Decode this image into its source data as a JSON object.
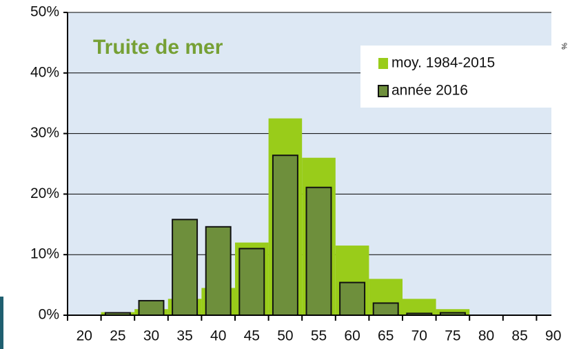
{
  "chart_data": {
    "type": "bar",
    "title": "Truite de mer",
    "side_label": "%",
    "categories": [
      "20",
      "25",
      "30",
      "35",
      "40",
      "45",
      "50",
      "55",
      "60",
      "65",
      "70",
      "75",
      "80",
      "85",
      "90"
    ],
    "series": [
      {
        "name": "moy. 1984-2015",
        "color": "#99cc1a",
        "values": [
          0,
          0.5,
          1,
          2.7,
          4.5,
          12,
          32.5,
          26,
          11.5,
          6,
          2.7,
          1,
          0,
          0,
          0
        ]
      },
      {
        "name": "année 2016",
        "color": "#6e8f3c",
        "values": [
          0,
          0.4,
          2.4,
          15.8,
          14.6,
          11,
          26.4,
          21.1,
          5.4,
          2,
          0.3,
          0.4,
          0,
          0,
          0
        ]
      }
    ],
    "ylim": [
      0,
      50
    ],
    "yticks": [
      {
        "value": 0,
        "label": "0%"
      },
      {
        "value": 10,
        "label": "10%"
      },
      {
        "value": 20,
        "label": "20%"
      },
      {
        "value": 30,
        "label": "30%"
      },
      {
        "value": 40,
        "label": "40%"
      },
      {
        "value": 50,
        "label": "50%"
      }
    ],
    "grid": true
  }
}
